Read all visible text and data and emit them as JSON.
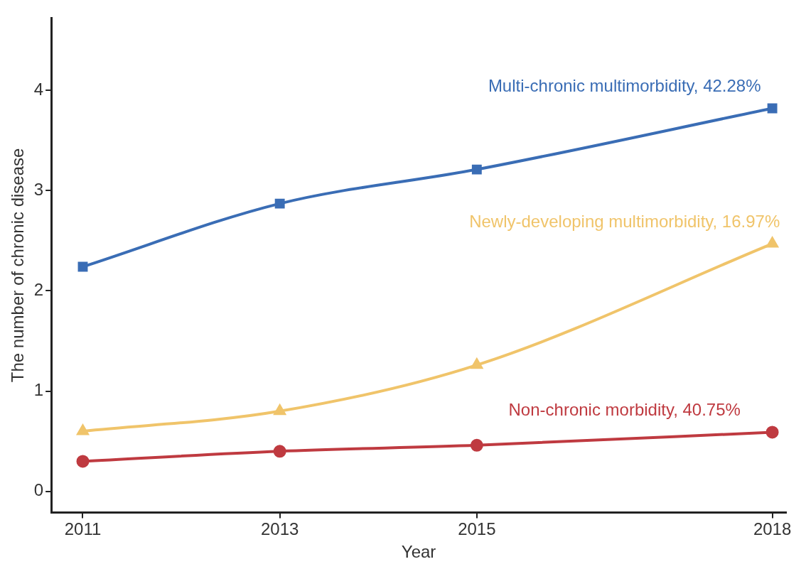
{
  "chart_data": {
    "type": "line",
    "xlabel": "Year",
    "ylabel": "The number of chronic disease",
    "x": [
      2011,
      2013,
      2015,
      2018
    ],
    "xlim": [
      2010.68,
      2018.14
    ],
    "xticks": [
      2011,
      2013,
      2015,
      2018
    ],
    "ylim": [
      -0.21,
      4.72
    ],
    "yticks": [
      0,
      1,
      2,
      3,
      4
    ],
    "grid": false,
    "legend": false,
    "series": [
      {
        "name": "Multi-chronic multimorbidity, 42.28%",
        "color": "#3a6db5",
        "marker": "square",
        "values": [
          2.24,
          2.87,
          3.21,
          3.82
        ]
      },
      {
        "name": "Newly-developing multimorbidity, 16.97%",
        "color": "#f0c46a",
        "marker": "triangle",
        "values": [
          0.6,
          0.8,
          1.26,
          2.47
        ]
      },
      {
        "name": "Non-chronic morbidity, 40.75%",
        "color": "#bf3a40",
        "marker": "circle",
        "values": [
          0.3,
          0.4,
          0.46,
          0.59
        ]
      }
    ]
  }
}
